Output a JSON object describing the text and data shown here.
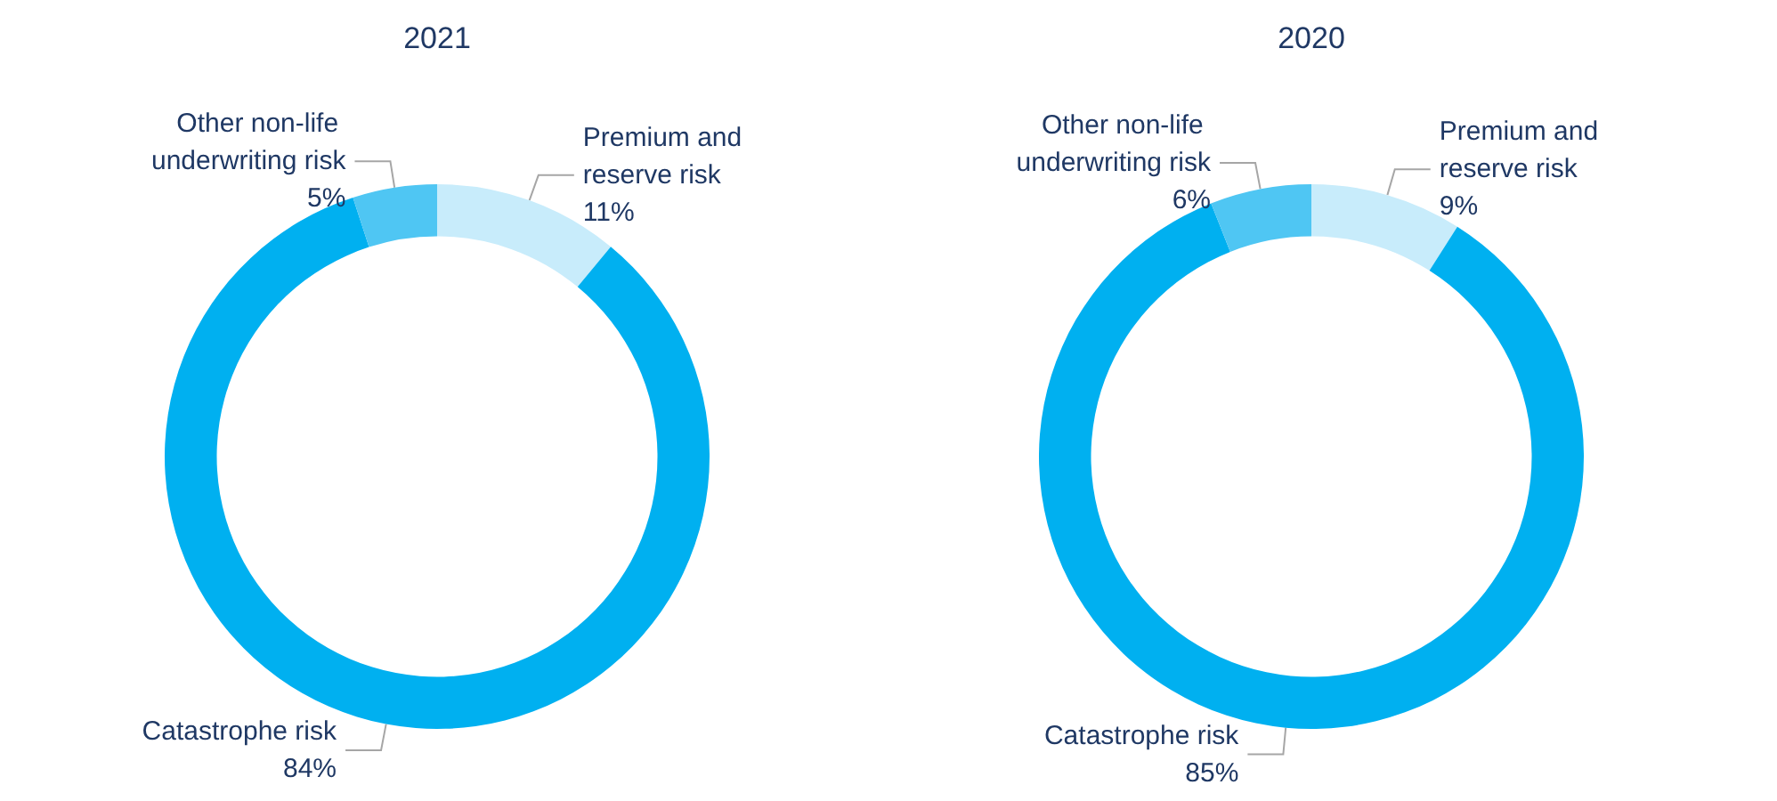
{
  "chart_data": [
    {
      "type": "donut",
      "title": "2021",
      "categories": [
        "Premium and reserve risk",
        "Catastrophe risk",
        "Other non-life underwriting risk"
      ],
      "values": [
        11,
        84,
        5
      ],
      "value_labels": [
        "11%",
        "84%",
        "5%"
      ],
      "colors": [
        "#c8ecfb",
        "#00b0f0",
        "#4fc6f3"
      ]
    },
    {
      "type": "donut",
      "title": "2020",
      "categories": [
        "Premium and reserve risk",
        "Catastrophe risk",
        "Other non-life underwriting risk"
      ],
      "values": [
        9,
        85,
        6
      ],
      "value_labels": [
        "9%",
        "85%",
        "6%"
      ],
      "colors": [
        "#c8ecfb",
        "#00b0f0",
        "#4fc6f3"
      ]
    }
  ]
}
